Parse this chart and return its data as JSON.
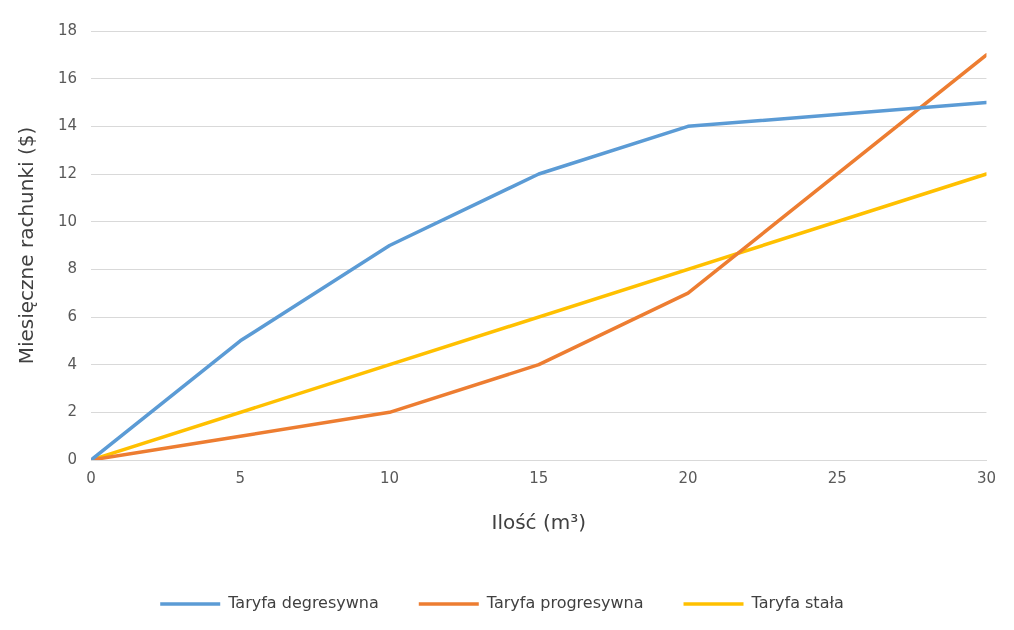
{
  "chart_data": {
    "type": "line",
    "xlabel": "Ilość (m³)",
    "ylabel": "Miesięczne rachunki ($)",
    "xlim": [
      0,
      30
    ],
    "xticks": [
      0,
      5,
      10,
      15,
      20,
      25,
      30
    ],
    "ylim": [
      0,
      18
    ],
    "yticks": [
      0,
      2,
      4,
      6,
      8,
      10,
      12,
      14,
      16,
      18
    ],
    "grid": "y",
    "legend": "bottom",
    "marker": "none",
    "line_style": "solid",
    "series": [
      {
        "name": "Taryfa degresywna",
        "color": "#5b9bd5",
        "x": [
          0,
          5,
          10,
          15,
          20,
          30
        ],
        "values": [
          0,
          5,
          9,
          12,
          14,
          15
        ]
      },
      {
        "name": "Taryfa progresywna",
        "color": "#ed7d31",
        "x": [
          0,
          5,
          10,
          15,
          20,
          30
        ],
        "values": [
          0,
          1,
          2,
          4,
          7,
          17
        ]
      },
      {
        "name": "Taryfa stała",
        "color": "#ffc000",
        "x": [
          0,
          30
        ],
        "values": [
          0,
          12
        ]
      }
    ]
  }
}
